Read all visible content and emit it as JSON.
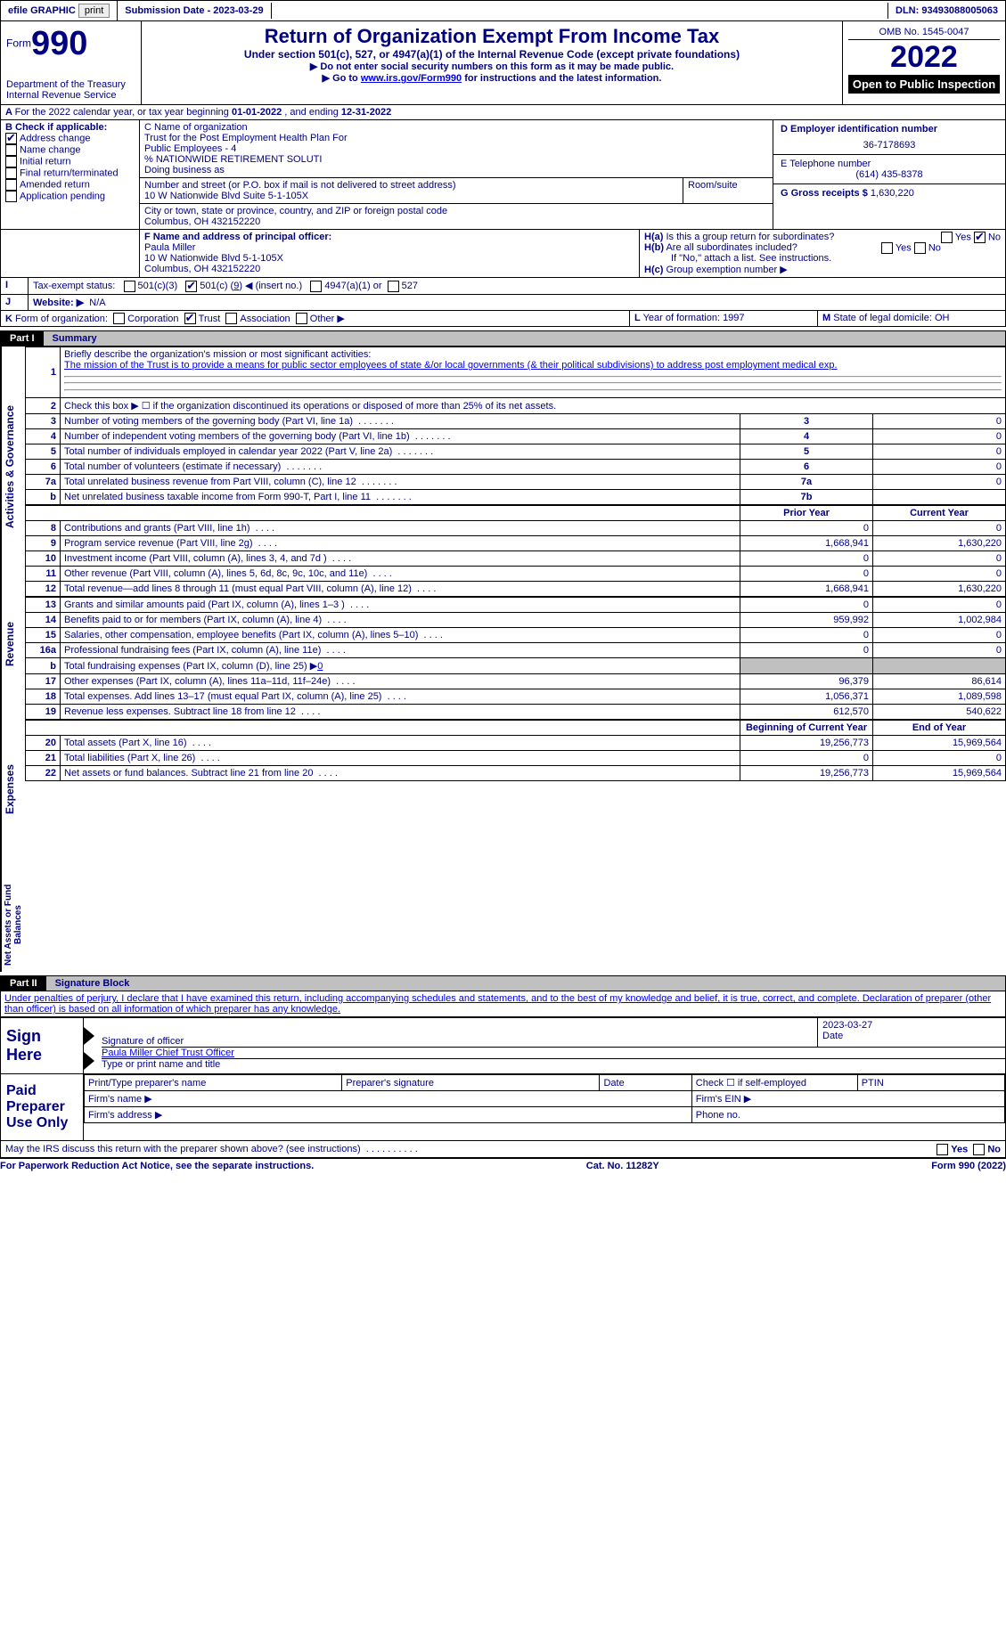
{
  "topbar": {
    "efile": "efile GRAPHIC",
    "print": "print",
    "subdate_label": "Submission Date - ",
    "subdate": "2023-03-29",
    "dln_label": "DLN: ",
    "dln": "93493088005063"
  },
  "header": {
    "form_word": "Form",
    "form_num": "990",
    "dept": "Department of the Treasury",
    "irs": "Internal Revenue Service",
    "title": "Return of Organization Exempt From Income Tax",
    "subtitle": "Under section 501(c), 527, or 4947(a)(1) of the Internal Revenue Code (except private foundations)",
    "warn1": "Do not enter social security numbers on this form as it may be made public.",
    "warn2_a": "Go to ",
    "warn2_link": "www.irs.gov/Form990",
    "warn2_b": " for instructions and the latest information.",
    "omb": "OMB No. 1545-0047",
    "year": "2022",
    "inspect": "Open to Public Inspection"
  },
  "A": {
    "text_a": "For the 2022 calendar year, or tax year beginning ",
    "begin": "01-01-2022",
    "text_b": " , and ending ",
    "end": "12-31-2022"
  },
  "B": {
    "label": "B Check if applicable:",
    "items": [
      "Address change",
      "Name change",
      "Initial return",
      "Final return/terminated",
      "Amended return",
      "Application pending"
    ],
    "checked": [
      true,
      false,
      false,
      false,
      false,
      false
    ]
  },
  "C": {
    "label": "C Name of organization",
    "name1": "Trust for the Post Employment Health Plan For",
    "name2": "Public Employees - 4",
    "name3": "% NATIONWIDE RETIREMENT SOLUTI",
    "dba_label": "Doing business as",
    "street_label": "Number and street (or P.O. box if mail is not delivered to street address)",
    "room_label": "Room/suite",
    "street": "10 W Nationwide Blvd Suite 5-1-105X",
    "city_label": "City or town, state or province, country, and ZIP or foreign postal code",
    "city": "Columbus, OH  432152220"
  },
  "D": {
    "label": "D Employer identification number",
    "val": "36-7178693"
  },
  "E": {
    "label": "E Telephone number",
    "val": "(614) 435-8378"
  },
  "G": {
    "label": "G Gross receipts $ ",
    "val": "1,630,220"
  },
  "F": {
    "label": "F  Name and address of principal officer:",
    "name": "Paula Miller",
    "addr1": "10 W Nationwide Blvd 5-1-105X",
    "addr2": "Columbus, OH  432152220"
  },
  "H": {
    "a": "Is this a group return for subordinates?",
    "b": "Are all subordinates included?",
    "b_note": "If \"No,\" attach a list. See instructions.",
    "c": "Group exemption number ▶",
    "yes": "Yes",
    "no": "No"
  },
  "I": {
    "label": "Tax-exempt status:",
    "o1": "501(c)(3)",
    "o2a": "501(c) (",
    "o2b": "9",
    "o2c": ") ◀ (insert no.)",
    "o3": "4947(a)(1) or",
    "o4": "527"
  },
  "J": {
    "label": "Website: ▶",
    "val": "N/A"
  },
  "K": {
    "label": "Form of organization:",
    "opts": [
      "Corporation",
      "Trust",
      "Association",
      "Other ▶"
    ],
    "checked": [
      false,
      true,
      false,
      false
    ]
  },
  "L": {
    "label": "Year of formation: ",
    "val": "1997"
  },
  "M": {
    "label": "State of legal domicile: ",
    "val": "OH"
  },
  "part1": {
    "bar": "Part I",
    "title": "Summary"
  },
  "summary": {
    "l1_intro": "Briefly describe the organization's mission or most significant activities:",
    "l1_text": "The mission of the Trust is to provide a means for public sector employees of state &/or local governments (& their political subdivisions) to address post employment medical exp.",
    "l2": "Check this box ▶ ☐ if the organization discontinued its operations or disposed of more than 25% of its net assets.",
    "rows_ag": [
      {
        "n": "3",
        "t": "Number of voting members of the governing body (Part VI, line 1a)",
        "box": "3",
        "v": "0"
      },
      {
        "n": "4",
        "t": "Number of independent voting members of the governing body (Part VI, line 1b)",
        "box": "4",
        "v": "0"
      },
      {
        "n": "5",
        "t": "Total number of individuals employed in calendar year 2022 (Part V, line 2a)",
        "box": "5",
        "v": "0"
      },
      {
        "n": "6",
        "t": "Total number of volunteers (estimate if necessary)",
        "box": "6",
        "v": "0"
      },
      {
        "n": "7a",
        "t": "Total unrelated business revenue from Part VIII, column (C), line 12",
        "box": "7a",
        "v": "0"
      },
      {
        "n": "b",
        "t": "Net unrelated business taxable income from Form 990-T, Part I, line 11",
        "box": "7b",
        "v": ""
      }
    ],
    "hdr_prior": "Prior Year",
    "hdr_curr": "Current Year",
    "rev": [
      {
        "n": "8",
        "t": "Contributions and grants (Part VIII, line 1h)",
        "p": "0",
        "c": "0"
      },
      {
        "n": "9",
        "t": "Program service revenue (Part VIII, line 2g)",
        "p": "1,668,941",
        "c": "1,630,220"
      },
      {
        "n": "10",
        "t": "Investment income (Part VIII, column (A), lines 3, 4, and 7d )",
        "p": "0",
        "c": "0"
      },
      {
        "n": "11",
        "t": "Other revenue (Part VIII, column (A), lines 5, 6d, 8c, 9c, 10c, and 11e)",
        "p": "0",
        "c": "0"
      },
      {
        "n": "12",
        "t": "Total revenue—add lines 8 through 11 (must equal Part VIII, column (A), line 12)",
        "p": "1,668,941",
        "c": "1,630,220"
      }
    ],
    "exp": [
      {
        "n": "13",
        "t": "Grants and similar amounts paid (Part IX, column (A), lines 1–3 )",
        "p": "0",
        "c": "0"
      },
      {
        "n": "14",
        "t": "Benefits paid to or for members (Part IX, column (A), line 4)",
        "p": "959,992",
        "c": "1,002,984"
      },
      {
        "n": "15",
        "t": "Salaries, other compensation, employee benefits (Part IX, column (A), lines 5–10)",
        "p": "0",
        "c": "0"
      },
      {
        "n": "16a",
        "t": "Professional fundraising fees (Part IX, column (A), line 11e)",
        "p": "0",
        "c": "0"
      },
      {
        "n": "b",
        "t": "Total fundraising expenses (Part IX, column (D), line 25) ▶",
        "p": "shade",
        "c": "shade",
        "extra": "0"
      },
      {
        "n": "17",
        "t": "Other expenses (Part IX, column (A), lines 11a–11d, 11f–24e)",
        "p": "96,379",
        "c": "86,614"
      },
      {
        "n": "18",
        "t": "Total expenses. Add lines 13–17 (must equal Part IX, column (A), line 25)",
        "p": "1,056,371",
        "c": "1,089,598"
      },
      {
        "n": "19",
        "t": "Revenue less expenses. Subtract line 18 from line 12",
        "p": "612,570",
        "c": "540,622"
      }
    ],
    "hdr_beg": "Beginning of Current Year",
    "hdr_end": "End of Year",
    "na": [
      {
        "n": "20",
        "t": "Total assets (Part X, line 16)",
        "p": "19,256,773",
        "c": "15,969,564"
      },
      {
        "n": "21",
        "t": "Total liabilities (Part X, line 26)",
        "p": "0",
        "c": "0"
      },
      {
        "n": "22",
        "t": "Net assets or fund balances. Subtract line 21 from line 20",
        "p": "19,256,773",
        "c": "15,969,564"
      }
    ]
  },
  "vlabels": {
    "ag": "Activities & Governance",
    "rev": "Revenue",
    "exp": "Expenses",
    "na": "Net Assets or Fund Balances"
  },
  "part2": {
    "bar": "Part II",
    "title": "Signature Block"
  },
  "sig": {
    "perjury": "Under penalties of perjury, I declare that I have examined this return, including accompanying schedules and statements, and to the best of my knowledge and belief, it is true, correct, and complete. Declaration of preparer (other than officer) is based on all information of which preparer has any knowledge.",
    "sign_here": "Sign Here",
    "sig_officer": "Signature of officer",
    "date": "Date",
    "sig_date": "2023-03-27",
    "name_title": "Paula Miller  Chief Trust Officer",
    "type_name": "Type or print name and title",
    "paid": "Paid Preparer Use Only",
    "prep_name": "Print/Type preparer's name",
    "prep_sig": "Preparer's signature",
    "prep_date": "Date",
    "self_emp": "Check ☐ if self-employed",
    "ptin": "PTIN",
    "firm_name": "Firm's name   ▶",
    "firm_ein": "Firm's EIN ▶",
    "firm_addr": "Firm's address ▶",
    "phone": "Phone no."
  },
  "bottom": {
    "discuss": "May the IRS discuss this return with the preparer shown above? (see instructions)",
    "yes": "Yes",
    "no": "No",
    "pra": "For Paperwork Reduction Act Notice, see the separate instructions.",
    "cat": "Cat. No. 11282Y",
    "form": "Form 990 (2022)"
  }
}
